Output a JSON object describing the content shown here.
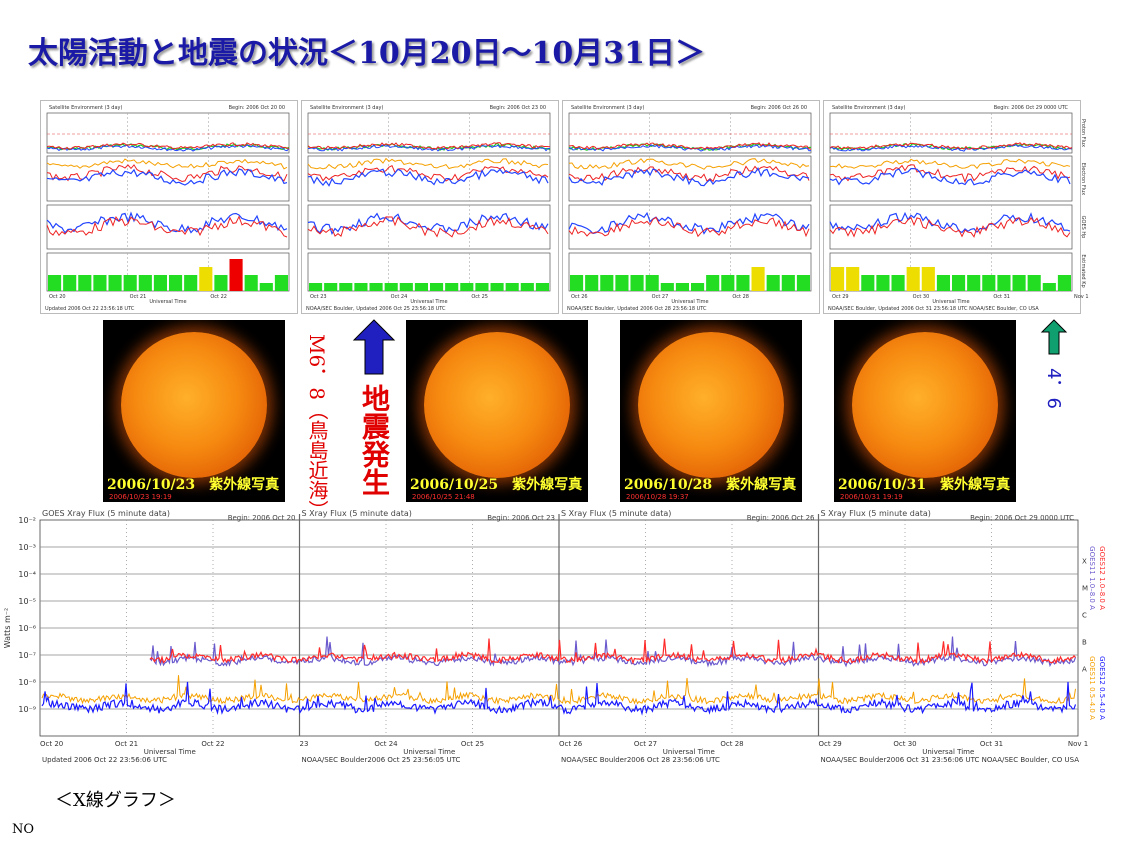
{
  "title": "太陽活動と地震の状況＜10月20日～10月31日＞",
  "satellite_panels": [
    {
      "header_left": "Satellite Environment (3 day)",
      "header_right": "Begin:  2006 Oct 20 00",
      "dates": [
        "Oct 20",
        "Oct 21",
        "Oct 22"
      ],
      "footer": "Updated 2006 Oct 22 23:56:18 UTC",
      "xlabel": "Universal Time"
    },
    {
      "header_left": "Satellite Environment (3 day)",
      "header_right": "Begin:  2006 Oct 23 00",
      "dates": [
        "Oct 23",
        "Oct 24",
        "Oct 25"
      ],
      "footer": "NOAA/SEC Boulder, Updated 2006 Oct 25 23:56:18 UTC",
      "xlabel": "Universal Time"
    },
    {
      "header_left": "Satellite Environment (3 day)",
      "header_right": "Begin:  2006 Oct 26 00",
      "dates": [
        "Oct 26",
        "Oct 27",
        "Oct 28"
      ],
      "footer": "NOAA/SEC Boulder, Updated 2006 Oct 28 23:56:18 UTC",
      "xlabel": "Universal Time"
    },
    {
      "header_left": "Satellite Environment (3 day)",
      "header_right": "Begin:  2006 Oct 29 0000 UTC",
      "dates": [
        "Oct 29",
        "Oct 30",
        "Oct 31",
        "Nov 1"
      ],
      "footer": "NOAA/SEC Boulder, Updated 2006 Oct 31 23:56:18 UTC   NOAA/SEC Boulder, CO USA",
      "xlabel": "Universal Time"
    }
  ],
  "side_labels": {
    "proton": "Proton Flux",
    "electron": "Electron Flux",
    "goes_hp": "GOES Hp",
    "kp": "Estimated Kp"
  },
  "sun_images": [
    {
      "caption": "2006/10/23　紫外線写真",
      "stamp": "2006/10/23 19:19"
    },
    {
      "caption": "2006/10/25　紫外線写真",
      "stamp": "2006/10/25 21:48"
    },
    {
      "caption": "2006/10/28　紫外線写真",
      "stamp": "2006/10/28 19:37"
    },
    {
      "caption": "2006/10/31　紫外線写真",
      "stamp": "2006/10/31 19:19"
    }
  ],
  "quake1": {
    "magnitude": "M6．8",
    "location": "（鳥島近海）",
    "label": "地震発生"
  },
  "quake2": {
    "magnitude": "4．6"
  },
  "colors": {
    "title": "#1a1aa6",
    "quake_label": "#e00000",
    "arrow1": "#2020c0",
    "arrow2": "#10a070",
    "goes11": "#1a1aff",
    "goes12": "#ff2a2a",
    "goes11_short": "#f5a000",
    "goes12_short": "#1a1aff"
  },
  "xray_panels": [
    {
      "header_left": "GOES Xray Flux (5 minute data)",
      "header_right": "Begin:  2006 Oct 20",
      "dates": [
        "Oct 20",
        "Oct 21",
        "Oct 22"
      ],
      "footer": "Updated 2006 Oct 22 23:56:06 UTC"
    },
    {
      "header_left": "S Xray Flux (5 minute data)",
      "header_right": "Begin:  2006 Oct 23",
      "dates": [
        "23",
        "Oct 24",
        "Oct 25"
      ],
      "footer": "NOAA/SEC Boulder2006 Oct 25 23:56:05 UTC"
    },
    {
      "header_left": "S Xray Flux (5 minute data)",
      "header_right": "Begin:  2006 Oct 26",
      "dates": [
        "Oct 26",
        "Oct 27",
        "Oct 28"
      ],
      "footer": "NOAA/SEC Boulder2006 Oct 28 23:56:06 UTC"
    },
    {
      "header_left": "S Xray Flux (5 minute data)",
      "header_right": "Begin:  2006 Oct 29 0000 UTC",
      "dates": [
        "Oct 29",
        "Oct 30",
        "Oct 31",
        "Nov 1"
      ],
      "footer": "NOAA/SEC Boulder2006 Oct 31 23:56:06 UTC   NOAA/SEC Boulder, CO USA"
    }
  ],
  "xray_axis": {
    "ylabel": "Watts m⁻²",
    "yticks": [
      "10⁻²",
      "10⁻³",
      "10⁻⁴",
      "10⁻⁵",
      "10⁻⁶",
      "10⁻⁷",
      "10⁻⁸",
      "10⁻⁹"
    ],
    "classes": [
      "X",
      "M",
      "C",
      "B",
      "A"
    ],
    "xlabel": "Universal Time"
  },
  "xray_legend": {
    "goes12_long": "GOES12 1.0–8.0 A",
    "goes11_long": "GOES11 1.0–8.0 A",
    "goes12_short": "GOES12 0.5–4.0 A",
    "goes11_short": "GOES11 0.5–4.0 A"
  },
  "bottom_caption": "＜X線グラフ＞",
  "footer_note": "NO"
}
